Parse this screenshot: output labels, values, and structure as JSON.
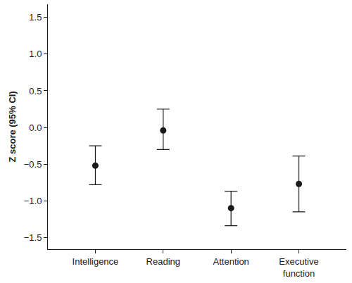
{
  "chart_data": {
    "type": "scatter",
    "y_label": "Z score (95% CI)",
    "categories": [
      "Intelligence",
      "Reading",
      "Attention",
      "Executive function"
    ],
    "values": [
      -0.52,
      -0.04,
      -1.1,
      -0.77
    ],
    "ci_lower": [
      -0.78,
      -0.3,
      -1.34,
      -1.15
    ],
    "ci_upper": [
      -0.25,
      0.25,
      -0.87,
      -0.39
    ],
    "color": "#1a1a1a",
    "marker": "circle",
    "ylim": [
      -1.66,
      1.68
    ],
    "yticks": [
      {
        "value": -1.5,
        "label": "−1.5"
      },
      {
        "value": -1,
        "label": "−1.0"
      },
      {
        "value": -0.5,
        "label": "−0.5"
      },
      {
        "value": 0,
        "label": "0.0"
      },
      {
        "value": 0.5,
        "label": "0.5"
      },
      {
        "value": 1,
        "label": "1.0"
      },
      {
        "value": 1.5,
        "label": "1.5"
      }
    ],
    "grid": false
  }
}
